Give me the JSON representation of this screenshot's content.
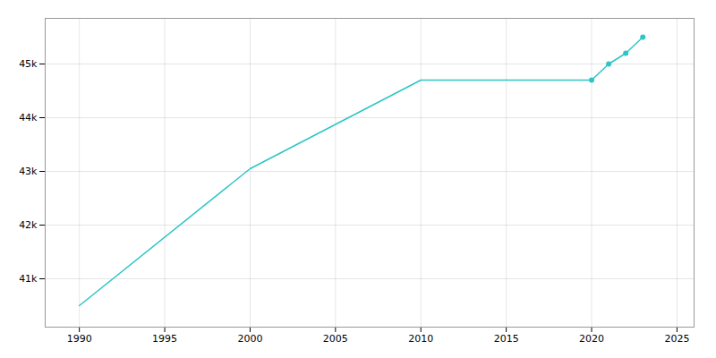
{
  "chart_data": {
    "type": "line",
    "x": [
      1990,
      2000,
      2010,
      2020,
      2021,
      2022,
      2023
    ],
    "values": [
      40500,
      43050,
      44700,
      44700,
      45000,
      45200,
      45500
    ],
    "color": "#2DC5C5",
    "marker": "o",
    "marker_x": [
      2020,
      2021,
      2022,
      2023
    ],
    "xlim": [
      1988,
      2026
    ],
    "ylim": [
      40100,
      45850
    ],
    "xticks": [
      1990,
      1995,
      2000,
      2005,
      2010,
      2015,
      2020,
      2025
    ],
    "yticks": [
      {
        "value": 41000,
        "label": "41k"
      },
      {
        "value": 42000,
        "label": "42k"
      },
      {
        "value": 43000,
        "label": "43k"
      },
      {
        "value": 44000,
        "label": "44k"
      },
      {
        "value": 45000,
        "label": "45k"
      }
    ],
    "grid": true
  }
}
